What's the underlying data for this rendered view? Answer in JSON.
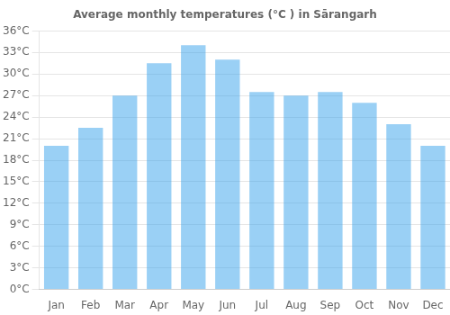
{
  "chart_data": {
    "type": "bar",
    "title": "Average monthly temperatures (°C ) in Sārangarh",
    "categories": [
      "Jan",
      "Feb",
      "Mar",
      "Apr",
      "May",
      "Jun",
      "Jul",
      "Aug",
      "Sep",
      "Oct",
      "Nov",
      "Dec"
    ],
    "values": [
      20.0,
      22.5,
      27.0,
      31.5,
      34.0,
      32.0,
      27.5,
      27.0,
      27.5,
      26.0,
      23.0,
      20.0
    ],
    "ylim": [
      0,
      36
    ],
    "yticks": [
      {
        "value": 0,
        "label": "0°C"
      },
      {
        "value": 3,
        "label": "3°C"
      },
      {
        "value": 6,
        "label": "6°C"
      },
      {
        "value": 9,
        "label": "9°C"
      },
      {
        "value": 12,
        "label": "12°C"
      },
      {
        "value": 15,
        "label": "15°C"
      },
      {
        "value": 18,
        "label": "18°C"
      },
      {
        "value": 21,
        "label": "21°C"
      },
      {
        "value": 24,
        "label": "24°C"
      },
      {
        "value": 27,
        "label": "27°C"
      },
      {
        "value": 30,
        "label": "30°C"
      },
      {
        "value": 33,
        "label": "33°C"
      },
      {
        "value": 36,
        "label": "36°C"
      }
    ],
    "grid": true
  }
}
